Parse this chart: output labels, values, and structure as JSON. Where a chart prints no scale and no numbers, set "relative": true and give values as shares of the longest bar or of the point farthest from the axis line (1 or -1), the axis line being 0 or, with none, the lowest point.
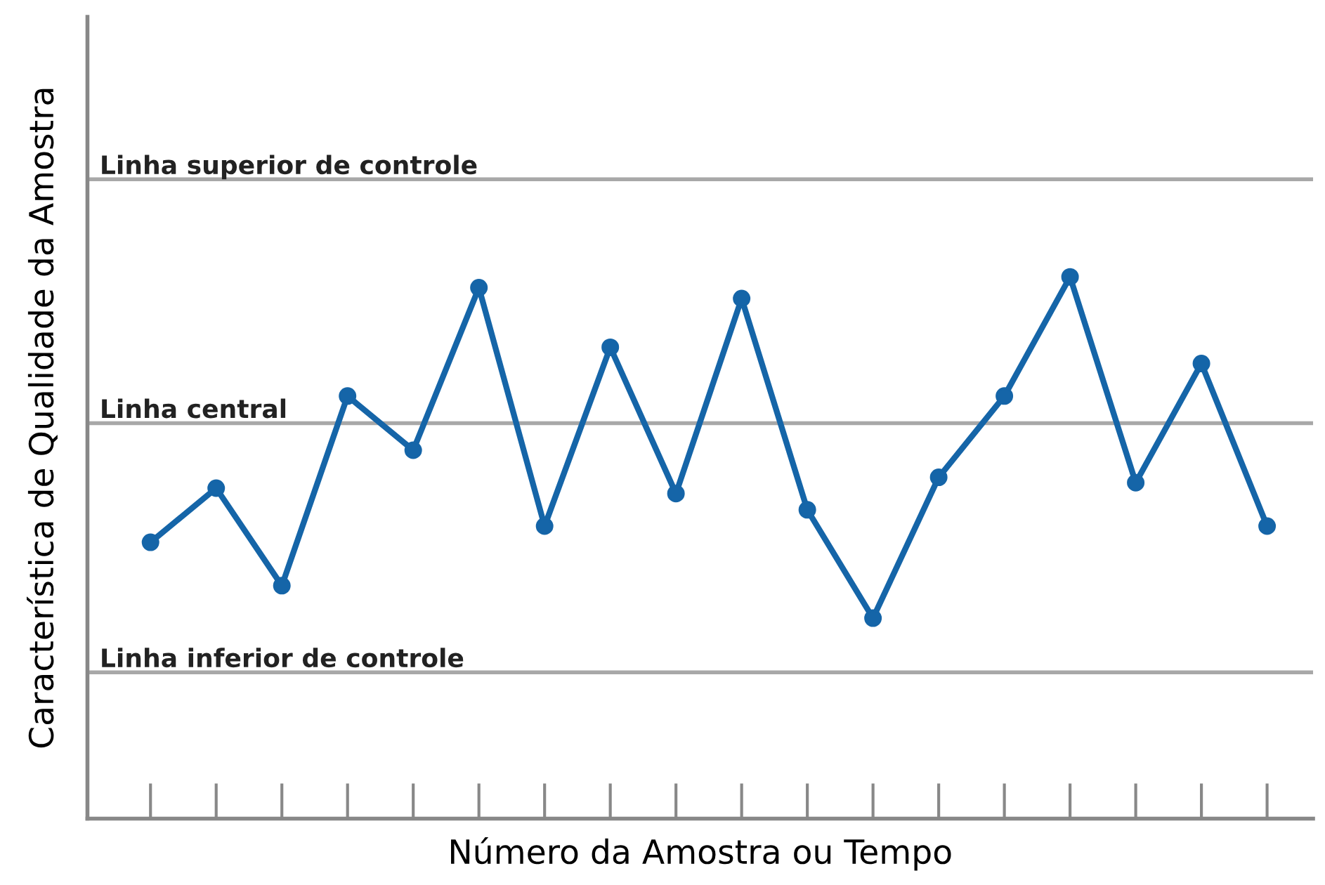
{
  "chart_data": {
    "type": "line",
    "relative": true,
    "xlabel": "Número da Amostra ou Tempo",
    "ylabel": "Característica de Qualidade da Amostra",
    "categories": [
      null,
      null,
      null,
      null,
      null,
      null,
      null,
      null,
      null,
      null,
      null,
      null,
      null,
      null,
      null,
      null,
      null,
      null
    ],
    "series": [
      {
        "color": "#1565a8",
        "values": [
          0.51,
          0.61,
          0.43,
          0.78,
          0.68,
          0.98,
          0.54,
          0.87,
          0.6,
          0.96,
          0.57,
          0.37,
          0.63,
          0.78,
          1.0,
          0.62,
          0.84,
          0.54
        ]
      }
    ],
    "marker": "circle",
    "line_style": "solid",
    "grid": false,
    "ref_lines": [
      {
        "axis": "y",
        "value": 1.18,
        "label": "Linha superior de controle",
        "color": "#a8a8a8"
      },
      {
        "axis": "y",
        "value": 0.73,
        "label": "Linha central",
        "color": "#a8a8a8"
      },
      {
        "axis": "y",
        "value": 0.27,
        "label": "Linha inferior de controle",
        "color": "#a8a8a8"
      }
    ]
  }
}
